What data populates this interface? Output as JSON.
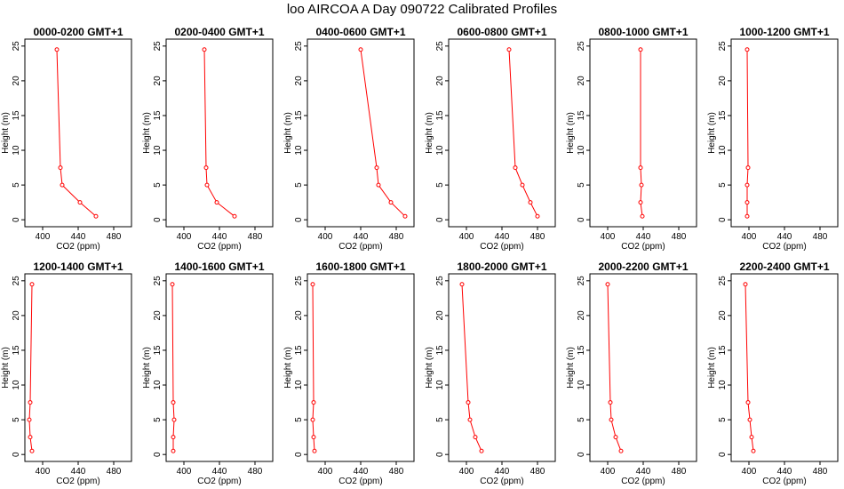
{
  "page": {
    "title": "loo AIRCOA A  Day 090722  Calibrated Profiles"
  },
  "chart_style": {
    "line_color": "#ff0000",
    "axis_color": "#000000",
    "background": "#ffffff"
  },
  "chart_data": [
    {
      "type": "line",
      "title": "0000-0200 GMT+1",
      "xlabel": "CO2 (ppm)",
      "ylabel": "Height (m)",
      "xlim": [
        380,
        500
      ],
      "ylim": [
        -1,
        26
      ],
      "xticks": [
        400,
        440,
        480
      ],
      "yticks": [
        0,
        5,
        10,
        15,
        20,
        25
      ],
      "grid": false,
      "series": [
        {
          "x": [
            416,
            420,
            422,
            442,
            460
          ],
          "y": [
            24.5,
            7.5,
            5.0,
            2.5,
            0.5
          ]
        }
      ]
    },
    {
      "type": "line",
      "title": "0200-0400 GMT+1",
      "xlabel": "CO2 (ppm)",
      "ylabel": "Height (m)",
      "xlim": [
        380,
        500
      ],
      "ylim": [
        -1,
        26
      ],
      "xticks": [
        400,
        440,
        480
      ],
      "yticks": [
        0,
        5,
        10,
        15,
        20,
        25
      ],
      "grid": false,
      "series": [
        {
          "x": [
            423,
            425,
            426,
            437,
            457
          ],
          "y": [
            24.5,
            7.5,
            5.0,
            2.5,
            0.5
          ]
        }
      ]
    },
    {
      "type": "line",
      "title": "0400-0600 GMT+1",
      "xlabel": "CO2 (ppm)",
      "ylabel": "Height (m)",
      "xlim": [
        380,
        500
      ],
      "ylim": [
        -1,
        26
      ],
      "xticks": [
        400,
        440,
        480
      ],
      "yticks": [
        0,
        5,
        10,
        15,
        20,
        25
      ],
      "grid": false,
      "series": [
        {
          "x": [
            440,
            458,
            460,
            474,
            490
          ],
          "y": [
            24.5,
            7.5,
            5.0,
            2.5,
            0.5
          ]
        }
      ]
    },
    {
      "type": "line",
      "title": "0600-0800 GMT+1",
      "xlabel": "CO2 (ppm)",
      "ylabel": "Height (m)",
      "xlim": [
        380,
        500
      ],
      "ylim": [
        -1,
        26
      ],
      "xticks": [
        400,
        440,
        480
      ],
      "yticks": [
        0,
        5,
        10,
        15,
        20,
        25
      ],
      "grid": false,
      "series": [
        {
          "x": [
            448,
            455,
            463,
            472,
            480
          ],
          "y": [
            24.5,
            7.5,
            5.0,
            2.5,
            0.5
          ]
        }
      ]
    },
    {
      "type": "line",
      "title": "0800-1000 GMT+1",
      "xlabel": "CO2 (ppm)",
      "ylabel": "Height (m)",
      "xlim": [
        380,
        500
      ],
      "ylim": [
        -1,
        26
      ],
      "xticks": [
        400,
        440,
        480
      ],
      "yticks": [
        0,
        5,
        10,
        15,
        20,
        25
      ],
      "grid": false,
      "series": [
        {
          "x": [
            437,
            437,
            438,
            437,
            439
          ],
          "y": [
            24.5,
            7.5,
            5.0,
            2.5,
            0.5
          ]
        }
      ]
    },
    {
      "type": "line",
      "title": "1000-1200 GMT+1",
      "xlabel": "CO2 (ppm)",
      "ylabel": "Height (m)",
      "xlim": [
        380,
        500
      ],
      "ylim": [
        -1,
        26
      ],
      "xticks": [
        400,
        440,
        480
      ],
      "yticks": [
        0,
        5,
        10,
        15,
        20,
        25
      ],
      "grid": false,
      "series": [
        {
          "x": [
            398,
            399,
            398,
            398,
            398
          ],
          "y": [
            24.5,
            7.5,
            5.0,
            2.5,
            0.5
          ]
        }
      ]
    },
    {
      "type": "line",
      "title": "1200-1400 GMT+1",
      "xlabel": "CO2 (ppm)",
      "ylabel": "Height (m)",
      "xlim": [
        380,
        500
      ],
      "ylim": [
        -1,
        26
      ],
      "xticks": [
        400,
        440,
        480
      ],
      "yticks": [
        0,
        5,
        10,
        15,
        20,
        25
      ],
      "grid": false,
      "series": [
        {
          "x": [
            388,
            386,
            385,
            386,
            388
          ],
          "y": [
            24.5,
            7.5,
            5.0,
            2.5,
            0.5
          ]
        }
      ]
    },
    {
      "type": "line",
      "title": "1400-1600 GMT+1",
      "xlabel": "CO2 (ppm)",
      "ylabel": "Height (m)",
      "xlim": [
        380,
        500
      ],
      "ylim": [
        -1,
        26
      ],
      "xticks": [
        400,
        440,
        480
      ],
      "yticks": [
        0,
        5,
        10,
        15,
        20,
        25
      ],
      "grid": false,
      "series": [
        {
          "x": [
            387,
            388,
            389,
            388,
            388
          ],
          "y": [
            24.5,
            7.5,
            5.0,
            2.5,
            0.5
          ]
        }
      ]
    },
    {
      "type": "line",
      "title": "1600-1800 GMT+1",
      "xlabel": "CO2 (ppm)",
      "ylabel": "Height (m)",
      "xlim": [
        380,
        500
      ],
      "ylim": [
        -1,
        26
      ],
      "xticks": [
        400,
        440,
        480
      ],
      "yticks": [
        0,
        5,
        10,
        15,
        20,
        25
      ],
      "grid": false,
      "series": [
        {
          "x": [
            386,
            387,
            386,
            387,
            388
          ],
          "y": [
            24.5,
            7.5,
            5.0,
            2.5,
            0.5
          ]
        }
      ]
    },
    {
      "type": "line",
      "title": "1800-2000 GMT+1",
      "xlabel": "CO2 (ppm)",
      "ylabel": "Height (m)",
      "xlim": [
        380,
        500
      ],
      "ylim": [
        -1,
        26
      ],
      "xticks": [
        400,
        440,
        480
      ],
      "yticks": [
        0,
        5,
        10,
        15,
        20,
        25
      ],
      "grid": false,
      "series": [
        {
          "x": [
            395,
            402,
            404,
            410,
            417
          ],
          "y": [
            24.5,
            7.5,
            5.0,
            2.5,
            0.5
          ]
        }
      ]
    },
    {
      "type": "line",
      "title": "2000-2200 GMT+1",
      "xlabel": "CO2 (ppm)",
      "ylabel": "Height (m)",
      "xlim": [
        380,
        500
      ],
      "ylim": [
        -1,
        26
      ],
      "xticks": [
        400,
        440,
        480
      ],
      "yticks": [
        0,
        5,
        10,
        15,
        20,
        25
      ],
      "grid": false,
      "series": [
        {
          "x": [
            400,
            403,
            404,
            409,
            415
          ],
          "y": [
            24.5,
            7.5,
            5.0,
            2.5,
            0.5
          ]
        }
      ]
    },
    {
      "type": "line",
      "title": "2200-2400 GMT+1",
      "xlabel": "CO2 (ppm)",
      "ylabel": "Height (m)",
      "xlim": [
        380,
        500
      ],
      "ylim": [
        -1,
        26
      ],
      "xticks": [
        400,
        440,
        480
      ],
      "yticks": [
        0,
        5,
        10,
        15,
        20,
        25
      ],
      "grid": false,
      "series": [
        {
          "x": [
            396,
            399,
            401,
            403,
            405
          ],
          "y": [
            24.5,
            7.5,
            5.0,
            2.5,
            0.5
          ]
        }
      ]
    }
  ]
}
